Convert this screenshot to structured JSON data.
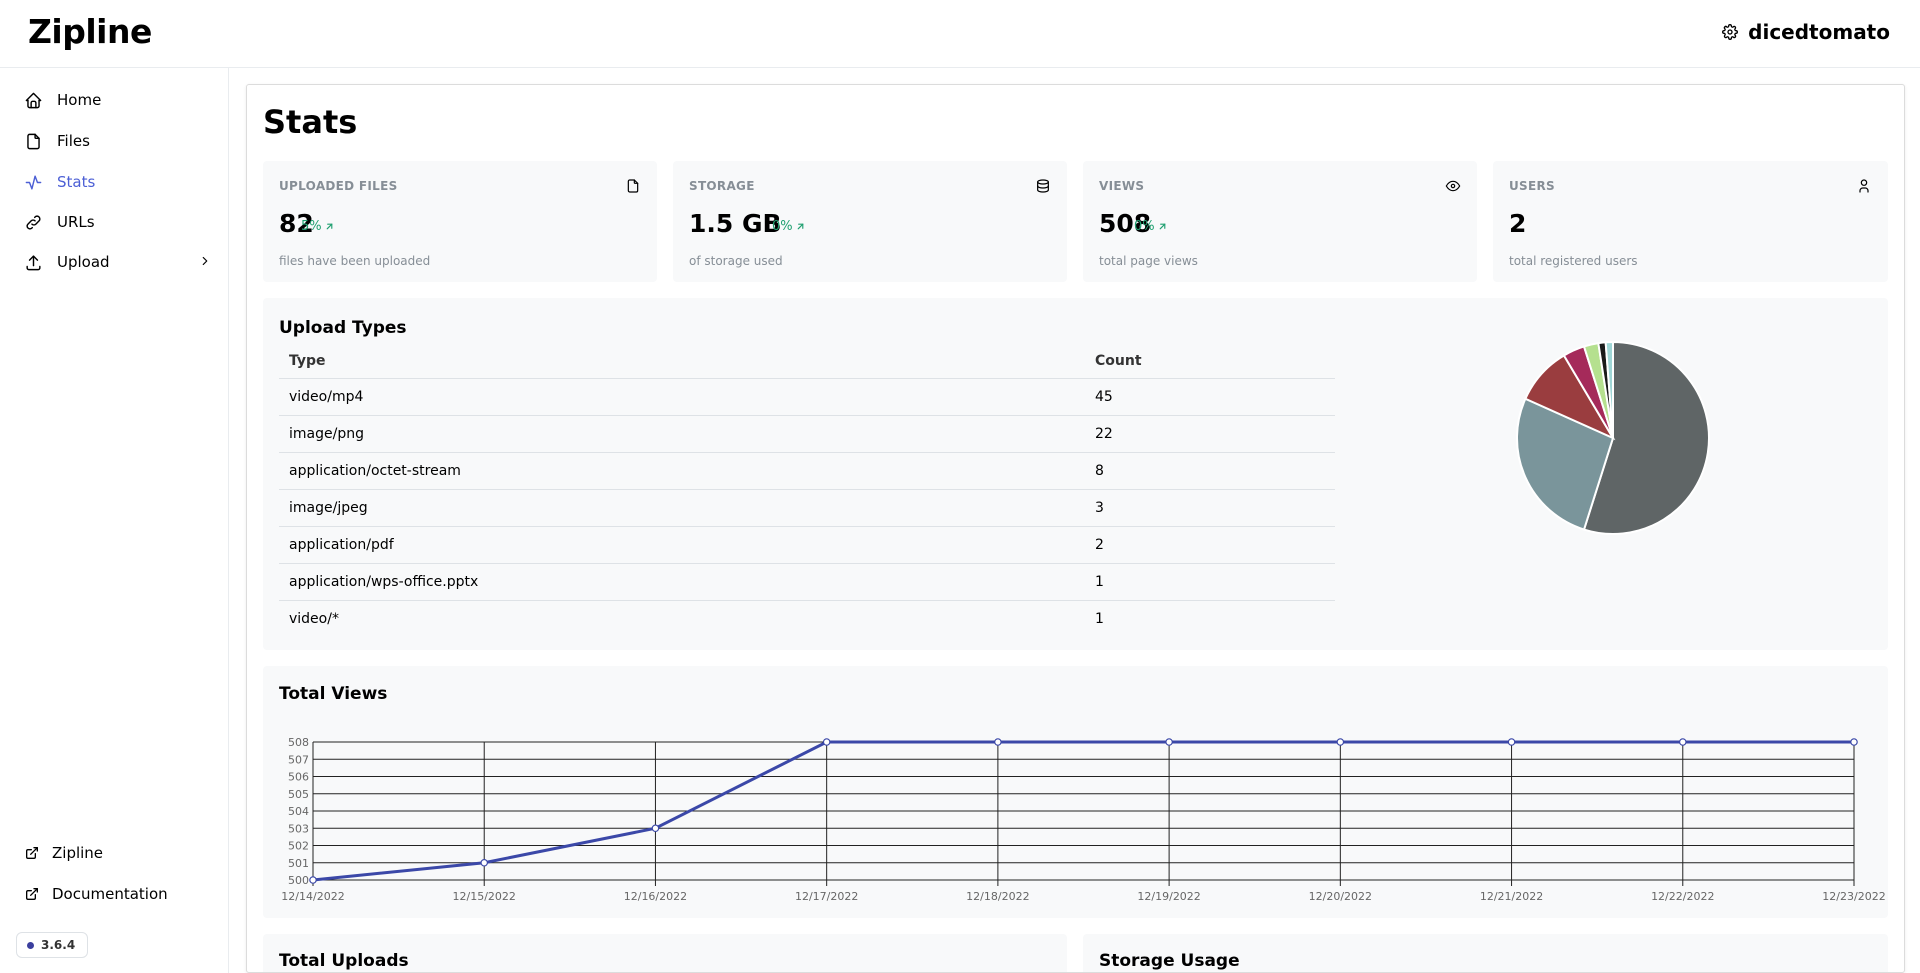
{
  "app": {
    "title": "Zipline",
    "username": "dicedtomato",
    "version": "3.6.4"
  },
  "sidebar": {
    "items": [
      {
        "label": "Home",
        "icon": "home-icon"
      },
      {
        "label": "Files",
        "icon": "file-icon"
      },
      {
        "label": "Stats",
        "icon": "activity-icon",
        "active": true
      },
      {
        "label": "URLs",
        "icon": "link-icon"
      },
      {
        "label": "Upload",
        "icon": "upload-icon"
      }
    ],
    "footer": [
      {
        "label": "Zipline",
        "icon": "external-link-icon"
      },
      {
        "label": "Documentation",
        "icon": "external-link-icon"
      }
    ]
  },
  "page": {
    "title": "Stats"
  },
  "stats": [
    {
      "label": "UPLOADED FILES",
      "value": "82",
      "diff": "5%",
      "desc": "files have been uploaded",
      "icon": "file-icon"
    },
    {
      "label": "STORAGE",
      "value": "1.5 GB",
      "diff": "0%",
      "desc": "of storage used",
      "icon": "database-icon"
    },
    {
      "label": "VIEWS",
      "value": "508",
      "diff": "0%",
      "desc": "total page views",
      "icon": "eye-icon"
    },
    {
      "label": "USERS",
      "value": "2",
      "desc": "total registered users",
      "icon": "user-icon"
    }
  ],
  "upload_types": {
    "title": "Upload Types",
    "headers": [
      "Type",
      "Count"
    ],
    "rows": [
      [
        "video/mp4",
        "45"
      ],
      [
        "image/png",
        "22"
      ],
      [
        "application/octet-stream",
        "8"
      ],
      [
        "image/jpeg",
        "3"
      ],
      [
        "application/pdf",
        "2"
      ],
      [
        "application/wps-office.pptx",
        "1"
      ],
      [
        "video/*",
        "1"
      ]
    ]
  },
  "sections": {
    "total_views": "Total Views",
    "total_uploads": "Total Uploads",
    "storage_usage": "Storage Usage"
  },
  "colors": {
    "accent": "#4c5fd5",
    "positive": "#20a070",
    "line": "#3b48a8"
  },
  "chart_data": [
    {
      "type": "pie",
      "labels": [
        "video/mp4",
        "image/png",
        "application/octet-stream",
        "image/jpeg",
        "application/pdf",
        "application/wps-office.pptx",
        "video/*"
      ],
      "values": [
        45,
        22,
        8,
        3,
        2,
        1,
        1
      ],
      "colors": [
        "#5f6566",
        "#7a959b",
        "#9a3d3f",
        "#a52a5a",
        "#b5e08f",
        "#1a1a1a",
        "#9fd6d6"
      ]
    },
    {
      "type": "line",
      "title": "Total Views",
      "x": [
        "12/14/2022",
        "12/15/2022",
        "12/16/2022",
        "12/17/2022",
        "12/18/2022",
        "12/19/2022",
        "12/20/2022",
        "12/21/2022",
        "12/22/2022",
        "12/23/2022"
      ],
      "series": [
        {
          "values": [
            500,
            501,
            503,
            508,
            508,
            508,
            508,
            508,
            508,
            508
          ]
        }
      ],
      "ylim": [
        500,
        508
      ],
      "yticks": [
        500,
        501,
        502,
        503,
        504,
        505,
        506,
        507,
        508
      ],
      "grid": true
    }
  ]
}
